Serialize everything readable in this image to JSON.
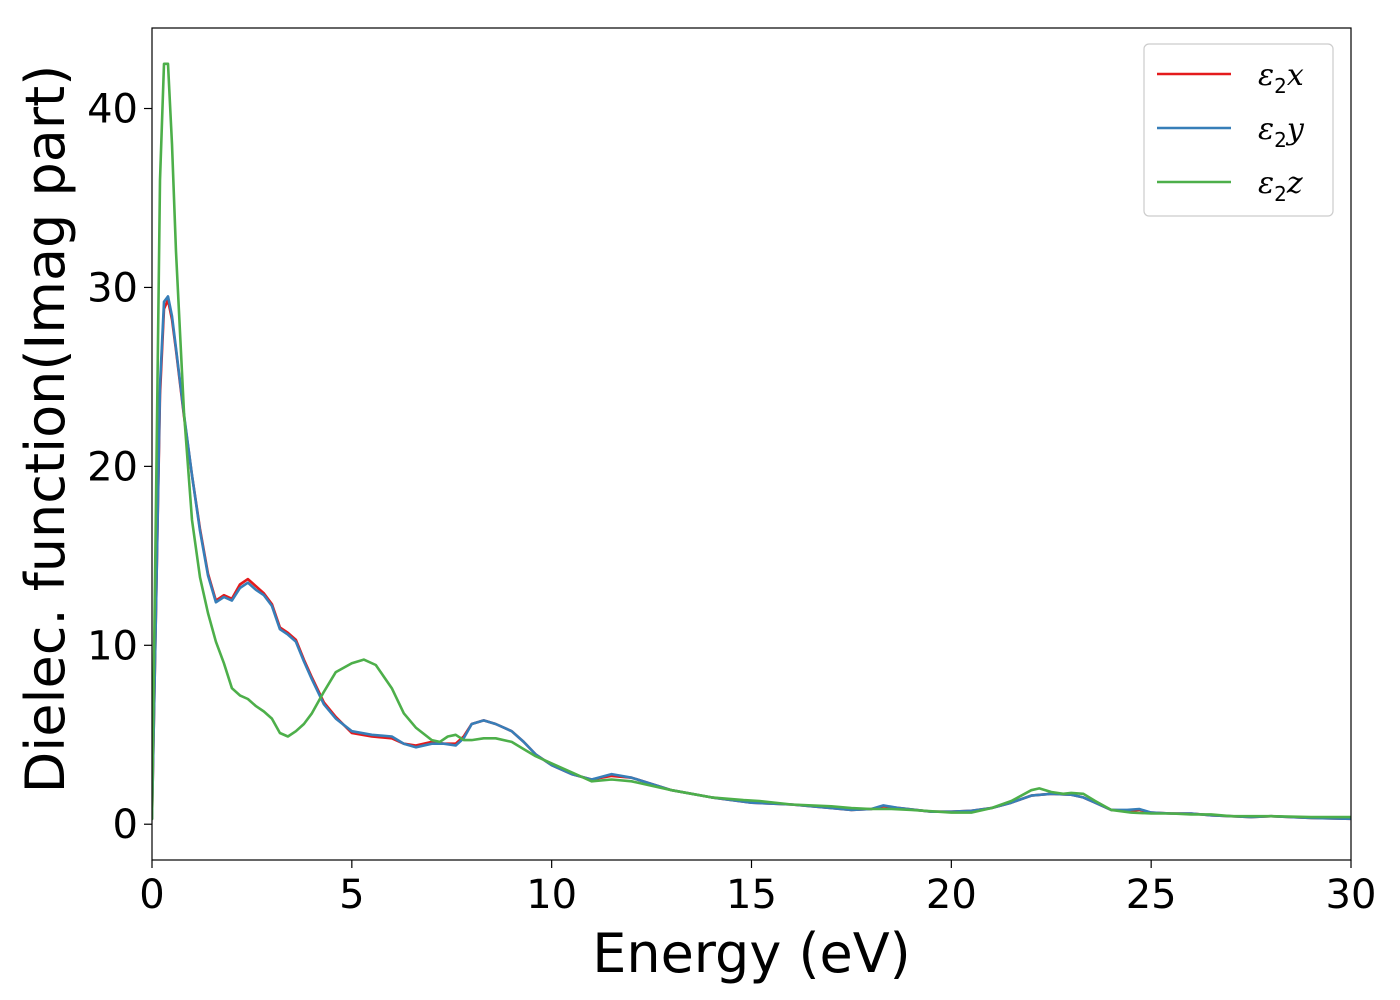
{
  "chart_data": {
    "type": "line",
    "title": "",
    "xlabel": "Energy (eV)",
    "ylabel": "Dielec. function(Imag part)",
    "xlim": [
      0,
      30
    ],
    "ylim": [
      -2,
      44.5
    ],
    "xticks": [
      0,
      5,
      10,
      15,
      20,
      25,
      30
    ],
    "yticks": [
      0,
      10,
      20,
      30,
      40
    ],
    "grid": false,
    "legend_position": "top-right",
    "series": [
      {
        "name": "ε₂x",
        "legend": {
          "symbol": "ε",
          "sub": "2",
          "var": "x"
        },
        "color": "#e41a1c",
        "x": [
          0,
          0.1,
          0.2,
          0.3,
          0.4,
          0.5,
          0.6,
          0.8,
          1.0,
          1.2,
          1.4,
          1.6,
          1.8,
          2.0,
          2.2,
          2.4,
          2.6,
          2.8,
          3.0,
          3.2,
          3.4,
          3.6,
          3.8,
          4.0,
          4.3,
          4.6,
          5.0,
          5.5,
          6.0,
          6.3,
          6.6,
          7.0,
          7.3,
          7.6,
          7.8,
          8.0,
          8.3,
          8.6,
          9.0,
          9.3,
          9.6,
          10.0,
          10.5,
          11.0,
          11.5,
          12.0,
          13.0,
          14.0,
          15.0,
          16.0,
          17.0,
          17.5,
          18.0,
          18.3,
          18.7,
          19.5,
          20.0,
          20.5,
          21.0,
          21.5,
          22.0,
          22.5,
          23.0,
          23.3,
          23.6,
          24.0,
          24.4,
          24.7,
          25.0,
          25.5,
          26.0,
          26.5,
          27.0,
          27.5,
          28.0,
          29.0,
          30.0
        ],
        "y": [
          0.3,
          12,
          24,
          28.8,
          29.3,
          28.2,
          26.5,
          22.8,
          19.5,
          16.5,
          14.0,
          12.5,
          12.8,
          12.6,
          13.4,
          13.7,
          13.3,
          12.9,
          12.3,
          11.0,
          10.7,
          10.3,
          9.2,
          8.2,
          6.8,
          6.0,
          5.1,
          4.9,
          4.8,
          4.5,
          4.4,
          4.6,
          4.5,
          4.5,
          4.9,
          5.6,
          5.8,
          5.6,
          5.2,
          4.6,
          3.9,
          3.3,
          2.8,
          2.5,
          2.7,
          2.6,
          1.9,
          1.5,
          1.2,
          1.1,
          0.9,
          0.8,
          0.85,
          1.0,
          0.9,
          0.7,
          0.7,
          0.75,
          0.9,
          1.2,
          1.6,
          1.7,
          1.65,
          1.5,
          1.2,
          0.8,
          0.75,
          0.8,
          0.65,
          0.6,
          0.6,
          0.5,
          0.45,
          0.4,
          0.45,
          0.35,
          0.3
        ]
      },
      {
        "name": "ε₂y",
        "legend": {
          "symbol": "ε",
          "sub": "2",
          "var": "y"
        },
        "color": "#377eb8",
        "x": [
          0,
          0.1,
          0.2,
          0.3,
          0.4,
          0.5,
          0.6,
          0.8,
          1.0,
          1.2,
          1.4,
          1.6,
          1.8,
          2.0,
          2.2,
          2.4,
          2.6,
          2.8,
          3.0,
          3.2,
          3.4,
          3.6,
          3.8,
          4.0,
          4.3,
          4.6,
          5.0,
          5.5,
          6.0,
          6.3,
          6.6,
          7.0,
          7.3,
          7.6,
          7.8,
          8.0,
          8.3,
          8.6,
          9.0,
          9.3,
          9.6,
          10.0,
          10.5,
          11.0,
          11.5,
          12.0,
          13.0,
          14.0,
          15.0,
          16.0,
          17.0,
          17.5,
          18.0,
          18.3,
          18.7,
          19.5,
          20.0,
          20.5,
          21.0,
          21.5,
          22.0,
          22.5,
          23.0,
          23.3,
          23.6,
          24.0,
          24.4,
          24.7,
          25.0,
          25.5,
          26.0,
          26.5,
          27.0,
          27.5,
          28.0,
          29.0,
          30.0
        ],
        "y": [
          0.3,
          12,
          24.5,
          29.2,
          29.5,
          28.4,
          26.6,
          22.9,
          19.5,
          16.4,
          13.9,
          12.4,
          12.7,
          12.5,
          13.2,
          13.5,
          13.1,
          12.8,
          12.2,
          10.9,
          10.6,
          10.2,
          9.1,
          8.1,
          6.7,
          5.9,
          5.2,
          5.0,
          4.9,
          4.5,
          4.3,
          4.5,
          4.5,
          4.4,
          4.8,
          5.6,
          5.8,
          5.6,
          5.2,
          4.6,
          3.9,
          3.3,
          2.8,
          2.5,
          2.8,
          2.6,
          1.9,
          1.5,
          1.2,
          1.1,
          0.9,
          0.8,
          0.85,
          1.05,
          0.9,
          0.7,
          0.7,
          0.75,
          0.9,
          1.2,
          1.6,
          1.7,
          1.65,
          1.5,
          1.2,
          0.8,
          0.8,
          0.85,
          0.65,
          0.6,
          0.6,
          0.5,
          0.45,
          0.4,
          0.45,
          0.35,
          0.3
        ]
      },
      {
        "name": "ε₂z",
        "legend": {
          "symbol": "ε",
          "sub": "2",
          "var": "z"
        },
        "color": "#4daf4a",
        "x": [
          0,
          0.1,
          0.2,
          0.3,
          0.4,
          0.5,
          0.6,
          0.8,
          1.0,
          1.2,
          1.4,
          1.6,
          1.8,
          2.0,
          2.2,
          2.4,
          2.6,
          2.8,
          3.0,
          3.2,
          3.4,
          3.6,
          3.8,
          4.0,
          4.3,
          4.6,
          5.0,
          5.3,
          5.6,
          6.0,
          6.3,
          6.6,
          7.0,
          7.2,
          7.4,
          7.6,
          7.8,
          8.0,
          8.3,
          8.6,
          9.0,
          9.3,
          9.6,
          10.0,
          10.5,
          11.0,
          11.5,
          12.0,
          13.0,
          14.0,
          14.8,
          15.2,
          16.0,
          17.0,
          17.5,
          18.0,
          18.5,
          19.0,
          20.0,
          20.5,
          21.0,
          21.5,
          22.0,
          22.2,
          22.5,
          22.8,
          23.0,
          23.3,
          23.6,
          24.0,
          24.5,
          25.0,
          25.5,
          26.0,
          26.5,
          27.0,
          27.5,
          28.0,
          29.0,
          30.0
        ],
        "y": [
          0.3,
          18,
          36,
          42.5,
          42.5,
          38,
          32,
          23,
          17,
          13.8,
          11.8,
          10.2,
          9.0,
          7.6,
          7.2,
          7.0,
          6.6,
          6.3,
          5.9,
          5.1,
          4.9,
          5.2,
          5.6,
          6.2,
          7.4,
          8.5,
          9.0,
          9.2,
          8.9,
          7.6,
          6.2,
          5.4,
          4.7,
          4.6,
          4.9,
          5.0,
          4.7,
          4.7,
          4.8,
          4.8,
          4.6,
          4.2,
          3.8,
          3.4,
          2.9,
          2.4,
          2.5,
          2.4,
          1.9,
          1.5,
          1.35,
          1.3,
          1.1,
          1.0,
          0.9,
          0.85,
          0.85,
          0.8,
          0.65,
          0.65,
          0.9,
          1.3,
          1.9,
          2.0,
          1.8,
          1.7,
          1.75,
          1.7,
          1.3,
          0.8,
          0.65,
          0.6,
          0.6,
          0.55,
          0.55,
          0.45,
          0.45,
          0.45,
          0.4,
          0.4
        ]
      }
    ]
  }
}
